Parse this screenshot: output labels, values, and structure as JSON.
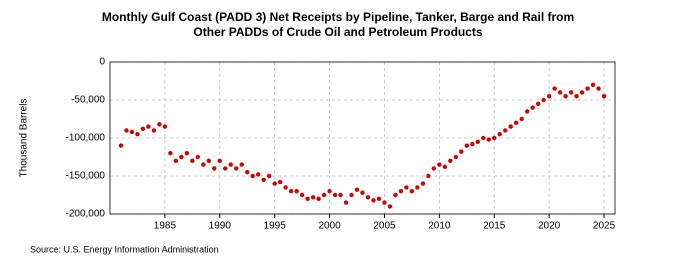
{
  "chart_data": {
    "type": "scatter",
    "title": "Monthly Gulf Coast (PADD 3) Net Receipts by Pipeline, Tanker, Barge and Rail from Other PADDs of Crude Oil and Petroleum Products",
    "y_label": "Thousand Barrels",
    "source": "Source: U.S. Energy Information Administration",
    "color": "#cc0000",
    "grid": true,
    "xlim": [
      1980,
      2026
    ],
    "xticks": [
      1985,
      1990,
      1995,
      2000,
      2005,
      2010,
      2015,
      2020,
      2025
    ],
    "ylim": [
      -200000,
      0
    ],
    "yticks": [
      {
        "value": -200000,
        "label": "-200,000"
      },
      {
        "value": -150000,
        "label": "-150,000"
      },
      {
        "value": -100000,
        "label": "-100,000"
      },
      {
        "value": -50000,
        "label": "-50,000"
      },
      0
    ],
    "x": [
      1981,
      1981.5,
      1982,
      1982.5,
      1983,
      1983.5,
      1984,
      1984.5,
      1985,
      1985.5,
      1986,
      1986.5,
      1987,
      1987.5,
      1988,
      1988.5,
      1989,
      1989.5,
      1990,
      1990.5,
      1991,
      1991.5,
      1992,
      1992.5,
      1993,
      1993.5,
      1994,
      1994.5,
      1995,
      1995.5,
      1996,
      1996.5,
      1997,
      1997.5,
      1998,
      1998.5,
      1999,
      1999.5,
      2000,
      2000.5,
      2001,
      2001.5,
      2002,
      2002.5,
      2003,
      2003.5,
      2004,
      2004.5,
      2005,
      2005.5,
      2006,
      2006.5,
      2007,
      2007.5,
      2008,
      2008.5,
      2009,
      2009.5,
      2010,
      2010.5,
      2011,
      2011.5,
      2012,
      2012.5,
      2013,
      2013.5,
      2014,
      2014.5,
      2015,
      2015.5,
      2016,
      2016.5,
      2017,
      2017.5,
      2018,
      2018.5,
      2019,
      2019.5,
      2020,
      2020.5,
      2021,
      2021.5,
      2022,
      2022.5,
      2023,
      2023.5,
      2024,
      2024.5,
      2025
    ],
    "values": [
      -110000,
      -90000,
      -92000,
      -95000,
      -88000,
      -85000,
      -90000,
      -82000,
      -85000,
      -120000,
      -130000,
      -125000,
      -120000,
      -130000,
      -125000,
      -135000,
      -130000,
      -140000,
      -130000,
      -140000,
      -135000,
      -140000,
      -135000,
      -145000,
      -150000,
      -148000,
      -155000,
      -150000,
      -160000,
      -158000,
      -165000,
      -170000,
      -170000,
      -175000,
      -180000,
      -178000,
      -180000,
      -175000,
      -170000,
      -175000,
      -175000,
      -185000,
      -175000,
      -168000,
      -172000,
      -178000,
      -182000,
      -180000,
      -185000,
      -190000,
      -175000,
      -170000,
      -165000,
      -170000,
      -165000,
      -160000,
      -150000,
      -140000,
      -135000,
      -138000,
      -130000,
      -125000,
      -118000,
      -110000,
      -108000,
      -105000,
      -100000,
      -102000,
      -100000,
      -95000,
      -90000,
      -85000,
      -80000,
      -75000,
      -65000,
      -60000,
      -55000,
      -50000,
      -45000,
      -35000,
      -40000,
      -45000,
      -40000,
      -45000,
      -40000,
      -35000,
      -30000,
      -35000,
      -45000
    ]
  }
}
